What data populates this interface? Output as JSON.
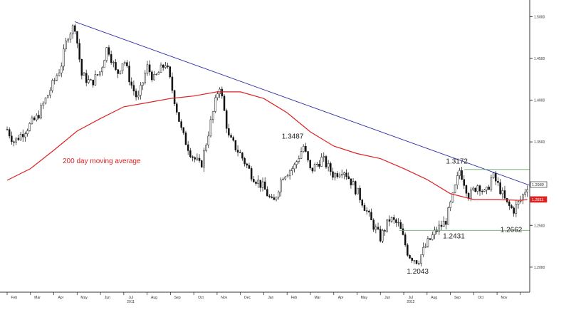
{
  "chart_data": {
    "type": "candlestick",
    "title": "",
    "xlabel": "",
    "ylabel": "",
    "ylim": [
      1.17,
      1.52
    ],
    "y_ticks": [
      "1.5000",
      "1.4500",
      "1.4000",
      "1.3500",
      "1.3000",
      "1.2500",
      "1.2000"
    ],
    "y_tick_values": [
      1.5,
      1.45,
      1.4,
      1.35,
      1.3,
      1.25,
      1.2
    ],
    "x_months": [
      {
        "label": "Feb",
        "m": 0.3
      },
      {
        "label": "Mar",
        "m": 1.3
      },
      {
        "label": "Apr",
        "m": 2.3
      },
      {
        "label": "May",
        "m": 3.3
      },
      {
        "label": "Jun",
        "m": 4.3
      },
      {
        "label": "Jul",
        "m": 5.3
      },
      {
        "label": "Aug",
        "m": 6.3
      },
      {
        "label": "Sep",
        "m": 7.3
      },
      {
        "label": "Oct",
        "m": 8.3
      },
      {
        "label": "Nov",
        "m": 9.3
      },
      {
        "label": "Dec",
        "m": 10.3
      },
      {
        "label": "Jan",
        "m": 11.3
      },
      {
        "label": "Feb",
        "m": 12.3
      },
      {
        "label": "Mar",
        "m": 13.3
      },
      {
        "label": "Apr",
        "m": 14.3
      },
      {
        "label": "May",
        "m": 15.3
      },
      {
        "label": "Jun",
        "m": 16.3
      },
      {
        "label": "Jul",
        "m": 17.3
      },
      {
        "label": "Aug",
        "m": 18.3
      },
      {
        "label": "Sep",
        "m": 19.3
      },
      {
        "label": "Oct",
        "m": 20.3
      },
      {
        "label": "Nov",
        "m": 21.3
      }
    ],
    "x_years": [
      {
        "label": "2011",
        "m": 5.3
      },
      {
        "label": "2012",
        "m": 17.3
      }
    ],
    "price_path": [
      [
        0.0,
        1.365
      ],
      [
        0.3,
        1.35
      ],
      [
        0.8,
        1.365
      ],
      [
        1.3,
        1.38
      ],
      [
        1.8,
        1.41
      ],
      [
        2.3,
        1.44
      ],
      [
        2.6,
        1.478
      ],
      [
        2.9,
        1.49
      ],
      [
        3.2,
        1.43
      ],
      [
        3.6,
        1.42
      ],
      [
        4.0,
        1.435
      ],
      [
        4.3,
        1.465
      ],
      [
        4.7,
        1.43
      ],
      [
        5.0,
        1.45
      ],
      [
        5.3,
        1.42
      ],
      [
        5.6,
        1.4
      ],
      [
        6.0,
        1.44
      ],
      [
        6.3,
        1.425
      ],
      [
        6.8,
        1.445
      ],
      [
        7.1,
        1.41
      ],
      [
        7.5,
        1.36
      ],
      [
        7.9,
        1.335
      ],
      [
        8.3,
        1.32
      ],
      [
        8.7,
        1.37
      ],
      [
        9.1,
        1.42
      ],
      [
        9.5,
        1.355
      ],
      [
        10.0,
        1.335
      ],
      [
        10.5,
        1.31
      ],
      [
        11.0,
        1.295
      ],
      [
        11.4,
        1.275
      ],
      [
        11.8,
        1.31
      ],
      [
        12.3,
        1.32
      ],
      [
        12.7,
        1.345
      ],
      [
        13.0,
        1.315
      ],
      [
        13.5,
        1.33
      ],
      [
        14.0,
        1.31
      ],
      [
        14.4,
        1.318
      ],
      [
        14.8,
        1.3
      ],
      [
        15.2,
        1.28
      ],
      [
        15.6,
        1.255
      ],
      [
        16.0,
        1.235
      ],
      [
        16.4,
        1.258
      ],
      [
        16.8,
        1.25
      ],
      [
        17.2,
        1.215
      ],
      [
        17.6,
        1.207
      ],
      [
        18.0,
        1.228
      ],
      [
        18.4,
        1.244
      ],
      [
        18.8,
        1.255
      ],
      [
        19.1,
        1.284
      ],
      [
        19.4,
        1.317
      ],
      [
        19.8,
        1.285
      ],
      [
        20.2,
        1.3
      ],
      [
        20.5,
        1.286
      ],
      [
        20.8,
        1.31
      ],
      [
        21.1,
        1.295
      ],
      [
        21.4,
        1.276
      ],
      [
        21.7,
        1.268
      ],
      [
        22.0,
        1.28
      ],
      [
        22.3,
        1.298
      ]
    ],
    "moving_average": {
      "name": "200 day moving average",
      "color": "#dd2222",
      "values": [
        [
          0.0,
          1.304
        ],
        [
          1.0,
          1.318
        ],
        [
          2.0,
          1.34
        ],
        [
          3.0,
          1.363
        ],
        [
          4.0,
          1.378
        ],
        [
          5.0,
          1.392
        ],
        [
          6.0,
          1.397
        ],
        [
          7.0,
          1.402
        ],
        [
          8.0,
          1.405
        ],
        [
          9.0,
          1.41
        ],
        [
          10.0,
          1.41
        ],
        [
          11.0,
          1.402
        ],
        [
          12.0,
          1.385
        ],
        [
          13.0,
          1.362
        ],
        [
          14.0,
          1.345
        ],
        [
          15.0,
          1.336
        ],
        [
          16.0,
          1.33
        ],
        [
          17.0,
          1.318
        ],
        [
          18.0,
          1.305
        ],
        [
          19.0,
          1.288
        ],
        [
          20.0,
          1.281
        ],
        [
          21.0,
          1.281
        ],
        [
          22.0,
          1.28
        ],
        [
          22.3,
          1.281
        ]
      ]
    },
    "trendline": {
      "color": "#3333aa",
      "from": [
        2.9,
        1.494
      ],
      "to": [
        22.4,
        1.298
      ]
    },
    "support_line": {
      "color": "#66aa66",
      "from": [
        16.8,
        1.244
      ],
      "to": [
        22.4,
        1.244
      ]
    },
    "resistance_line": {
      "color": "#66aa66",
      "from": [
        19.6,
        1.317
      ],
      "to": [
        22.4,
        1.317
      ]
    },
    "annotations": [
      {
        "label": "1.3487",
        "x": 12.3,
        "y": 1.3487
      },
      {
        "label": "1.3172",
        "x": 19.4,
        "y": 1.3172
      },
      {
        "label": "1.2662",
        "x": 21.7,
        "y": 1.2662
      },
      {
        "label": "1.2431",
        "x": 18.6,
        "y": 1.2431
      },
      {
        "label": "1.2043",
        "x": 17.6,
        "y": 1.2043
      }
    ],
    "last_price_badge": {
      "label": "1.2989",
      "value": 1.2989,
      "color": "#333333"
    },
    "ma_badge": {
      "label": "1.2811",
      "value": 1.2811,
      "color": "#dd2222"
    }
  }
}
